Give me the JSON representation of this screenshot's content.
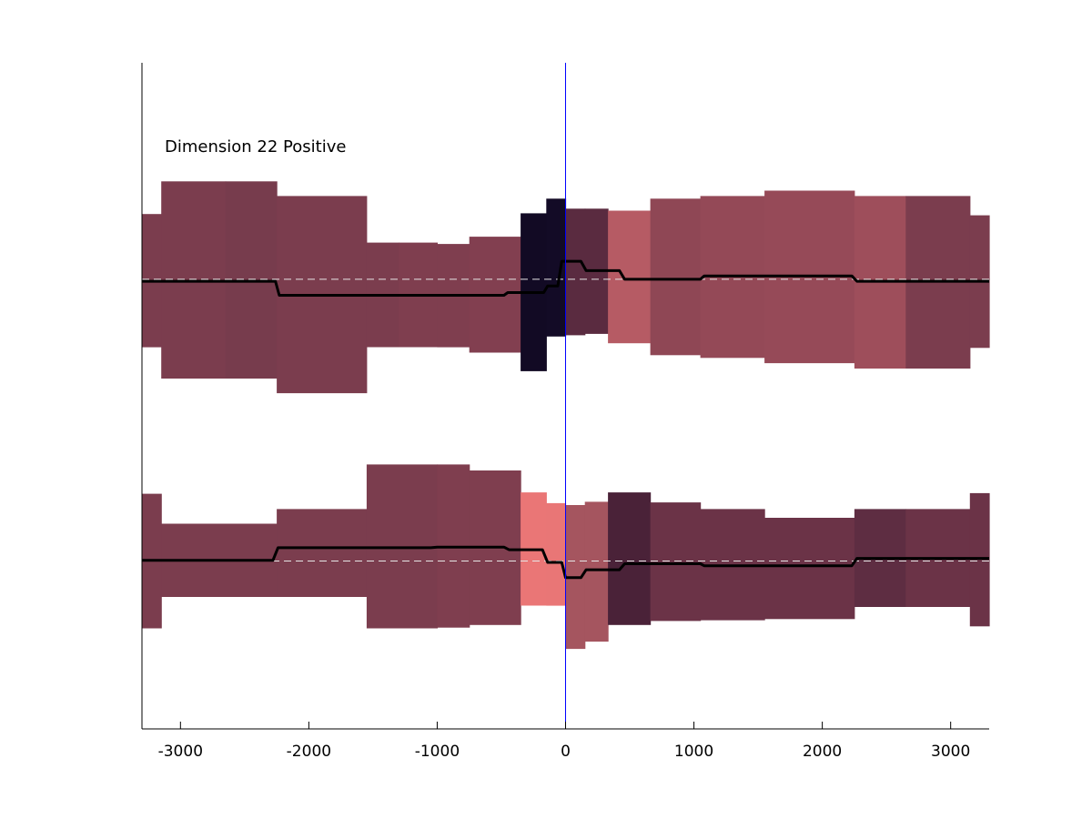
{
  "chart_data": {
    "type": "area",
    "title": "",
    "xlabel": "",
    "ylabel": "",
    "xlim": [
      -3300,
      3300
    ],
    "xticks": [
      -3000,
      -2000,
      -1000,
      0,
      1000,
      2000,
      3000
    ],
    "xtick_labels": [
      "-3000",
      "-2000",
      "-1000",
      "0",
      "1000",
      "2000",
      "3000"
    ],
    "ylim": [
      0,
      1
    ],
    "grid": false,
    "legend": "none",
    "annotation": "Dimension 22 Positive",
    "event_line_x": 0,
    "event_line_color": "#0000ff",
    "band_colors": {
      "neutral": "#7b3d4e",
      "light": "#a1535e",
      "bright": "#e97676",
      "dark": "#5a2b40",
      "darkest": "#120a24"
    },
    "series": [
      {
        "center": 0.675,
        "bands": [
          {
            "x0": -3300,
            "x1": -3150,
            "lower": -0.102,
            "upper": 0.098,
            "color": "#7b3d4e"
          },
          {
            "x0": -3150,
            "x1": -2650,
            "lower": -0.149,
            "upper": 0.147,
            "color": "#7b3d4e"
          },
          {
            "x0": -2650,
            "x1": -2250,
            "lower": -0.149,
            "upper": 0.147,
            "color": "#773c4d"
          },
          {
            "x0": -2250,
            "x1": -1550,
            "lower": -0.171,
            "upper": 0.125,
            "color": "#7b3d4e"
          },
          {
            "x0": -1550,
            "x1": -1300,
            "lower": -0.102,
            "upper": 0.055,
            "color": "#7b3d4e"
          },
          {
            "x0": -1300,
            "x1": -1000,
            "lower": -0.102,
            "upper": 0.055,
            "color": "#7f3e4f"
          },
          {
            "x0": -1000,
            "x1": -750,
            "lower": -0.102,
            "upper": 0.053,
            "color": "#7f3e4f"
          },
          {
            "x0": -750,
            "x1": -350,
            "lower": -0.11,
            "upper": 0.064,
            "color": "#823f50"
          },
          {
            "x0": -350,
            "x1": -150,
            "lower": -0.138,
            "upper": 0.099,
            "color": "#120a24"
          },
          {
            "x0": -150,
            "x1": 0,
            "lower": -0.086,
            "upper": 0.121,
            "color": "#130b26"
          },
          {
            "x0": 0,
            "x1": 150,
            "lower": -0.084,
            "upper": 0.106,
            "color": "#5a2b40"
          },
          {
            "x0": 150,
            "x1": 330,
            "lower": -0.082,
            "upper": 0.106,
            "color": "#5a2b40"
          },
          {
            "x0": 330,
            "x1": 660,
            "lower": -0.096,
            "upper": 0.103,
            "color": "#b65b64"
          },
          {
            "x0": 660,
            "x1": 1050,
            "lower": -0.114,
            "upper": 0.121,
            "color": "#8f4755"
          },
          {
            "x0": 1050,
            "x1": 1550,
            "lower": -0.118,
            "upper": 0.125,
            "color": "#944957"
          },
          {
            "x0": 1550,
            "x1": 2250,
            "lower": -0.126,
            "upper": 0.133,
            "color": "#964a58"
          },
          {
            "x0": 2250,
            "x1": 2650,
            "lower": -0.134,
            "upper": 0.125,
            "color": "#9e4e5b"
          },
          {
            "x0": 2650,
            "x1": 3150,
            "lower": -0.134,
            "upper": 0.125,
            "color": "#7b3d4e"
          },
          {
            "x0": 3150,
            "x1": 3300,
            "lower": -0.103,
            "upper": 0.096,
            "color": "#7b3d4e"
          }
        ],
        "line": [
          [
            -3300,
            -0.003
          ],
          [
            -2260,
            -0.003
          ],
          [
            -2230,
            -0.024
          ],
          [
            -480,
            -0.024
          ],
          [
            -450,
            -0.02
          ],
          [
            -170,
            -0.02
          ],
          [
            -140,
            -0.01
          ],
          [
            -60,
            -0.01
          ],
          [
            -30,
            0.027
          ],
          [
            120,
            0.027
          ],
          [
            160,
            0.013
          ],
          [
            420,
            0.013
          ],
          [
            460,
            0.0
          ],
          [
            1050,
            0.0
          ],
          [
            1080,
            0.005
          ],
          [
            2230,
            0.005
          ],
          [
            2270,
            -0.003
          ],
          [
            3300,
            -0.003
          ]
        ]
      },
      {
        "center": 0.252,
        "bands": [
          {
            "x0": -3300,
            "x1": -3150,
            "lower": -0.101,
            "upper": 0.101,
            "color": "#7b3d4e"
          },
          {
            "x0": -3150,
            "x1": -2250,
            "lower": -0.054,
            "upper": 0.056,
            "color": "#7b3d4e"
          },
          {
            "x0": -2250,
            "x1": -1550,
            "lower": -0.054,
            "upper": 0.078,
            "color": "#7b3d4e"
          },
          {
            "x0": -1550,
            "x1": -1000,
            "lower": -0.101,
            "upper": 0.145,
            "color": "#7b3d4e"
          },
          {
            "x0": -1000,
            "x1": -750,
            "lower": -0.1,
            "upper": 0.145,
            "color": "#7f3e4f"
          },
          {
            "x0": -750,
            "x1": -350,
            "lower": -0.096,
            "upper": 0.136,
            "color": "#7f3e4f"
          },
          {
            "x0": -350,
            "x1": -150,
            "lower": -0.067,
            "upper": 0.103,
            "color": "#ea7676"
          },
          {
            "x0": -150,
            "x1": 0,
            "lower": -0.067,
            "upper": 0.087,
            "color": "#e97676"
          },
          {
            "x0": 0,
            "x1": 150,
            "lower": -0.132,
            "upper": 0.084,
            "color": "#a5555f"
          },
          {
            "x0": 150,
            "x1": 330,
            "lower": -0.121,
            "upper": 0.089,
            "color": "#a5555f"
          },
          {
            "x0": 330,
            "x1": 660,
            "lower": -0.096,
            "upper": 0.103,
            "color": "#4a2238"
          },
          {
            "x0": 660,
            "x1": 1050,
            "lower": -0.09,
            "upper": 0.088,
            "color": "#6b3347"
          },
          {
            "x0": 1050,
            "x1": 1550,
            "lower": -0.089,
            "upper": 0.078,
            "color": "#6b3347"
          },
          {
            "x0": 1550,
            "x1": 2250,
            "lower": -0.087,
            "upper": 0.065,
            "color": "#6b3347"
          },
          {
            "x0": 2250,
            "x1": 2650,
            "lower": -0.069,
            "upper": 0.078,
            "color": "#5e2d42"
          },
          {
            "x0": 2650,
            "x1": 3150,
            "lower": -0.069,
            "upper": 0.078,
            "color": "#6b3347"
          },
          {
            "x0": 3150,
            "x1": 3300,
            "lower": -0.098,
            "upper": 0.102,
            "color": "#6b3347"
          }
        ],
        "line": [
          [
            -3300,
            0.001
          ],
          [
            -2280,
            0.001
          ],
          [
            -2240,
            0.02
          ],
          [
            -1050,
            0.02
          ],
          [
            -1000,
            0.021
          ],
          [
            -480,
            0.021
          ],
          [
            -440,
            0.017
          ],
          [
            -180,
            0.017
          ],
          [
            -140,
            -0.002
          ],
          [
            -30,
            -0.002
          ],
          [
            0,
            -0.025
          ],
          [
            120,
            -0.025
          ],
          [
            160,
            -0.013
          ],
          [
            420,
            -0.013
          ],
          [
            460,
            -0.004
          ],
          [
            1050,
            -0.004
          ],
          [
            1080,
            -0.007
          ],
          [
            2230,
            -0.007
          ],
          [
            2270,
            0.004
          ],
          [
            3300,
            0.004
          ]
        ]
      }
    ]
  }
}
